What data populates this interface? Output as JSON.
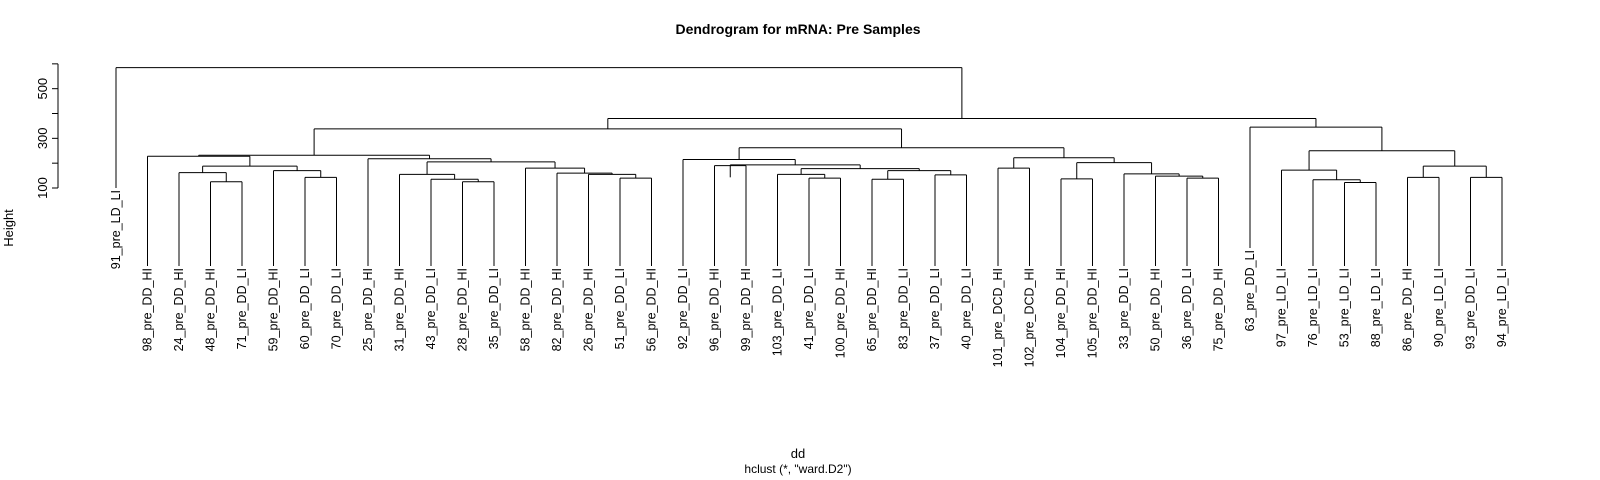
{
  "chart_data": {
    "type": "dendrogram",
    "title": "Dendrogram for mRNA: Pre Samples",
    "xlabel": "dd",
    "sub": "hclust (*, \"ward.D2\")",
    "ylabel": "Height",
    "yticks": [
      100,
      300,
      500
    ],
    "ylim": [
      100,
      600
    ],
    "leaves": [
      "91_pre_LD_LI",
      "98_pre_DD_HI",
      "24_pre_DD_HI",
      "48_pre_DD_HI",
      "71_pre_DD_LI",
      "59_pre_DD_HI",
      "60_pre_DD_LI",
      "70_pre_DD_LI",
      "25_pre_DD_HI",
      "31_pre_DD_HI",
      "43_pre_DD_LI",
      "28_pre_DD_HI",
      "35_pre_DD_LI",
      "58_pre_DD_HI",
      "82_pre_DD_HI",
      "26_pre_DD_HI",
      "51_pre_DD_LI",
      "56_pre_DD_HI",
      "92_pre_DD_LI",
      "96_pre_DD_HI",
      "99_pre_DD_HI",
      "103_pre_DD_LI",
      "41_pre_DD_LI",
      "100_pre_DD_HI",
      "65_pre_DD_HI",
      "83_pre_DD_LI",
      "37_pre_DD_LI",
      "40_pre_DD_LI",
      "101_pre_DCD_HI",
      "102_pre_DCD_HI",
      "104_pre_DD_HI",
      "105_pre_DD_HI",
      "33_pre_DD_LI",
      "50_pre_DD_HI",
      "36_pre_DD_LI",
      "75_pre_DD_HI",
      "63_pre_DD_LI",
      "97_pre_LD_LI",
      "76_pre_LD_LI",
      "53_pre_LD_LI",
      "88_pre_LD_LI",
      "86_pre_DD_HI",
      "90_pre_LD_LI",
      "93_pre_DD_LI",
      "94_pre_LD_LI"
    ],
    "leaf_heights": [
      100,
      92,
      92,
      92,
      92,
      92,
      92,
      92,
      92,
      92,
      92,
      92,
      92,
      92,
      92,
      92,
      92,
      92,
      92,
      92,
      92,
      92,
      92,
      92,
      92,
      92,
      92,
      92,
      92,
      92,
      92,
      92,
      92,
      92,
      92,
      92,
      92,
      92,
      92,
      92,
      92,
      92,
      92,
      92,
      92
    ],
    "merges": [
      [
        3,
        4,
        118
      ],
      [
        -3,
        0,
        155
      ],
      [
        -2,
        1,
        232
      ],
      [
        6,
        7,
        142
      ],
      [
        -6,
        3,
        165
      ],
      [
        -9,
        -10,
        185
      ],
      [
        5,
        4,
        188
      ],
      [
        2,
        6,
        232
      ],
      [
        11,
        12,
        120
      ],
      [
        10,
        8,
        130
      ],
      [
        9,
        9,
        150
      ],
      [
        16,
        17,
        137
      ],
      [
        15,
        11,
        155
      ],
      [
        14,
        12,
        160
      ],
      [
        13,
        13,
        180
      ],
      [
        -11,
        14,
        205
      ],
      [
        -10,
        15,
        218
      ],
      [
        19,
        20,
        143
      ],
      [
        22,
        23,
        139
      ],
      [
        21,
        18,
        153
      ],
      [
        24,
        25,
        133
      ],
      [
        26,
        27,
        151
      ],
      [
        20,
        21,
        170
      ],
      [
        22,
        23,
        178
      ],
      [
        19,
        24,
        193
      ],
      [
        -18,
        25,
        218
      ],
      [
        28,
        29,
        178
      ],
      [
        34,
        35,
        138
      ],
      [
        33,
        27,
        147
      ],
      [
        32,
        28,
        157
      ],
      [
        30,
        31,
        135
      ],
      [
        29,
        30,
        200
      ],
      [
        26,
        31,
        222
      ],
      [
        -25,
        32,
        262
      ],
      [
        -8,
        -16,
        218
      ],
      [
        -7,
        34,
        232
      ],
      [
        -33,
        33,
        338
      ],
      [
        39,
        40,
        120
      ],
      [
        38,
        37,
        133
      ],
      [
        37,
        38,
        170
      ],
      [
        41,
        42,
        140
      ],
      [
        43,
        44,
        143
      ],
      [
        40,
        41,
        188
      ],
      [
        39,
        42,
        250
      ],
      [
        36,
        43,
        345
      ],
      [
        -36,
        44,
        380
      ],
      [
        -1,
        45,
        585
      ]
    ]
  }
}
